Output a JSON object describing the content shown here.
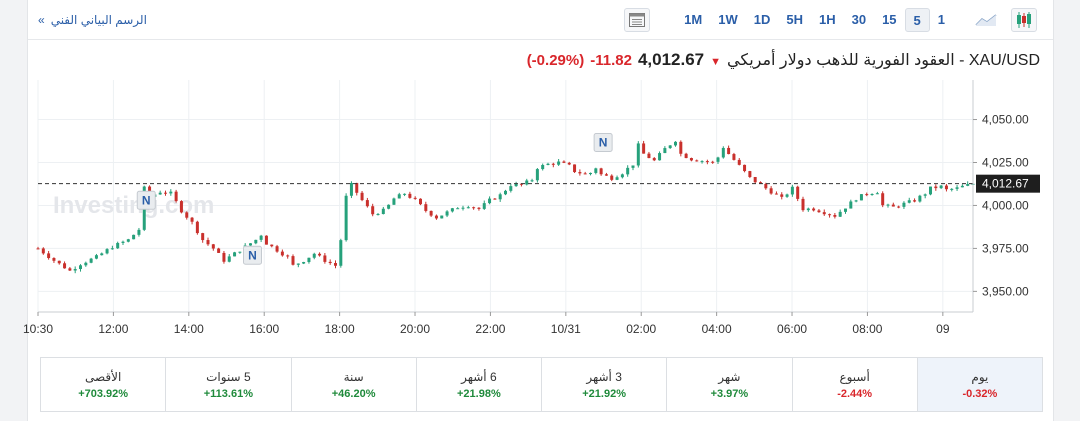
{
  "toolbar": {
    "tech_chart_link": "الرسم البياني الفني",
    "tech_chart_arrow": "»",
    "timeframes": [
      "1M",
      "1W",
      "1D",
      "5H",
      "1H",
      "30",
      "15",
      "5",
      "1"
    ],
    "active_timeframe": "5"
  },
  "header": {
    "symbol_title": "XAU/USD - العقود الفورية للذهب دولار أمريكي",
    "price": "4,012.67",
    "change": "-11.82",
    "change_pct": "(-0.29%)"
  },
  "watermark": "Investing.com",
  "news_markers": [
    "N",
    "N",
    "N"
  ],
  "chart_data": {
    "type": "candlestick",
    "x_tick_labels": [
      "10:30",
      "12:00",
      "14:00",
      "16:00",
      "18:00",
      "20:00",
      "22:00",
      "10/31",
      "02:00",
      "04:00",
      "06:00",
      "08:00",
      "09"
    ],
    "y_tick_labels": [
      "4,050.00",
      "4,025.00",
      "4,000.00",
      "3,975.00",
      "3,950.00"
    ],
    "y_ticks": [
      4050,
      4025,
      4000,
      3975,
      3950
    ],
    "ylim": [
      3938,
      4073
    ],
    "last_price": 4012.67,
    "last_price_label": "4,012.67",
    "path": [
      [
        0,
        3975
      ],
      [
        3,
        3968
      ],
      [
        6,
        3962
      ],
      [
        8,
        3966
      ],
      [
        11,
        3970
      ],
      [
        14,
        3976
      ],
      [
        17,
        3980
      ],
      [
        19,
        3986
      ],
      [
        20,
        4010
      ],
      [
        21,
        4005
      ],
      [
        23,
        4008
      ],
      [
        25,
        4007
      ],
      [
        27,
        3997
      ],
      [
        29,
        3990
      ],
      [
        31,
        3980
      ],
      [
        33,
        3975
      ],
      [
        35,
        3968
      ],
      [
        37,
        3972
      ],
      [
        39,
        3976
      ],
      [
        41,
        3980
      ],
      [
        42,
        3983
      ],
      [
        43,
        3978
      ],
      [
        45,
        3974
      ],
      [
        47,
        3970
      ],
      [
        48,
        3965
      ],
      [
        50,
        3968
      ],
      [
        52,
        3972
      ],
      [
        54,
        3968
      ],
      [
        56,
        3965
      ],
      [
        57,
        3980
      ],
      [
        58,
        4005
      ],
      [
        59,
        4012
      ],
      [
        61,
        4003
      ],
      [
        63,
        3995
      ],
      [
        65,
        3997
      ],
      [
        66,
        4000
      ],
      [
        67,
        4004
      ],
      [
        69,
        4007
      ],
      [
        71,
        4003
      ],
      [
        73,
        3997
      ],
      [
        75,
        3993
      ],
      [
        77,
        3996
      ],
      [
        79,
        3999
      ],
      [
        81,
        4000
      ],
      [
        83,
        3998
      ],
      [
        85,
        4003
      ],
      [
        87,
        4006
      ],
      [
        89,
        4012
      ],
      [
        91,
        4012
      ],
      [
        93,
        4015
      ],
      [
        94,
        4022
      ],
      [
        96,
        4024
      ],
      [
        98,
        4025
      ],
      [
        100,
        4023
      ],
      [
        101,
        4020
      ],
      [
        103,
        4018
      ],
      [
        104,
        4019
      ],
      [
        105,
        4022
      ],
      [
        106,
        4018
      ],
      [
        108,
        4016
      ],
      [
        110,
        4019
      ],
      [
        112,
        4024
      ],
      [
        113,
        4035
      ],
      [
        114,
        4030
      ],
      [
        116,
        4026
      ],
      [
        118,
        4033
      ],
      [
        120,
        4038
      ],
      [
        121,
        4030
      ],
      [
        123,
        4027
      ],
      [
        125,
        4026
      ],
      [
        127,
        4025
      ],
      [
        128,
        4028
      ],
      [
        129,
        4034
      ],
      [
        130,
        4030
      ],
      [
        132,
        4023
      ],
      [
        134,
        4016
      ],
      [
        136,
        4012
      ],
      [
        138,
        4008
      ],
      [
        140,
        4004
      ],
      [
        141,
        4007
      ],
      [
        142,
        4010
      ],
      [
        143,
        4004
      ],
      [
        144,
        3998
      ],
      [
        146,
        3998
      ],
      [
        148,
        3996
      ],
      [
        150,
        3994
      ],
      [
        152,
        3999
      ],
      [
        154,
        4004
      ],
      [
        156,
        4007
      ],
      [
        158,
        4008
      ],
      [
        159,
        4000
      ],
      [
        161,
        3999
      ],
      [
        163,
        4001
      ],
      [
        165,
        4003
      ],
      [
        167,
        4007
      ],
      [
        168,
        4010
      ],
      [
        170,
        4011
      ],
      [
        171,
        4009
      ],
      [
        173,
        4010
      ],
      [
        174,
        4011
      ],
      [
        176,
        4012.67
      ]
    ]
  },
  "stats": [
    {
      "label": "يوم",
      "value": "-0.32%",
      "dir": "neg"
    },
    {
      "label": "أسبوع",
      "value": "-2.44%",
      "dir": "neg"
    },
    {
      "label": "شهر",
      "value": "+3.97%",
      "dir": "pos"
    },
    {
      "label": "3 أشهر",
      "value": "+21.92%",
      "dir": "pos"
    },
    {
      "label": "6 أشهر",
      "value": "+21.98%",
      "dir": "pos"
    },
    {
      "label": "سنة",
      "value": "+46.20%",
      "dir": "pos"
    },
    {
      "label": "5 سنوات",
      "value": "+113.61%",
      "dir": "pos"
    },
    {
      "label": "الأقصى",
      "value": "+703.92%",
      "dir": "pos"
    }
  ],
  "colors": {
    "up": "#26a17b",
    "down": "#c9302c",
    "accent": "#2a5ea8"
  }
}
